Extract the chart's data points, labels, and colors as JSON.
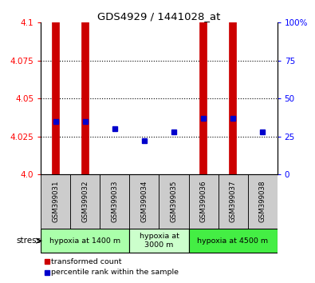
{
  "title": "GDS4929 / 1441028_at",
  "samples": [
    "GSM399031",
    "GSM399032",
    "GSM399033",
    "GSM399034",
    "GSM399035",
    "GSM399036",
    "GSM399037",
    "GSM399038"
  ],
  "transformed_counts": [
    4.1,
    4.1,
    4.0,
    4.0,
    4.0,
    4.1,
    4.1,
    4.0
  ],
  "percentile_ranks": [
    35,
    35,
    30,
    22,
    28,
    37,
    37,
    28
  ],
  "ylim_left": [
    4.0,
    4.1
  ],
  "ylim_right": [
    0,
    100
  ],
  "yticks_left": [
    4.0,
    4.025,
    4.05,
    4.075,
    4.1
  ],
  "yticks_right": [
    0,
    25,
    50,
    75,
    100
  ],
  "red_bar_indices": [
    0,
    1,
    5,
    6
  ],
  "groups": [
    {
      "label": "hypoxia at 1400 m",
      "start": 0,
      "end": 2,
      "color": "#aaffaa"
    },
    {
      "label": "hypoxia at\n3000 m",
      "start": 3,
      "end": 4,
      "color": "#ccffcc"
    },
    {
      "label": "hypoxia at 4500 m",
      "start": 5,
      "end": 7,
      "color": "#44ee44"
    }
  ],
  "bar_color": "#cc0000",
  "dot_color": "#0000cc",
  "sample_box_color": "#cccccc",
  "legend_red": "transformed count",
  "legend_blue": "percentile rank within the sample",
  "stress_label": "stress"
}
